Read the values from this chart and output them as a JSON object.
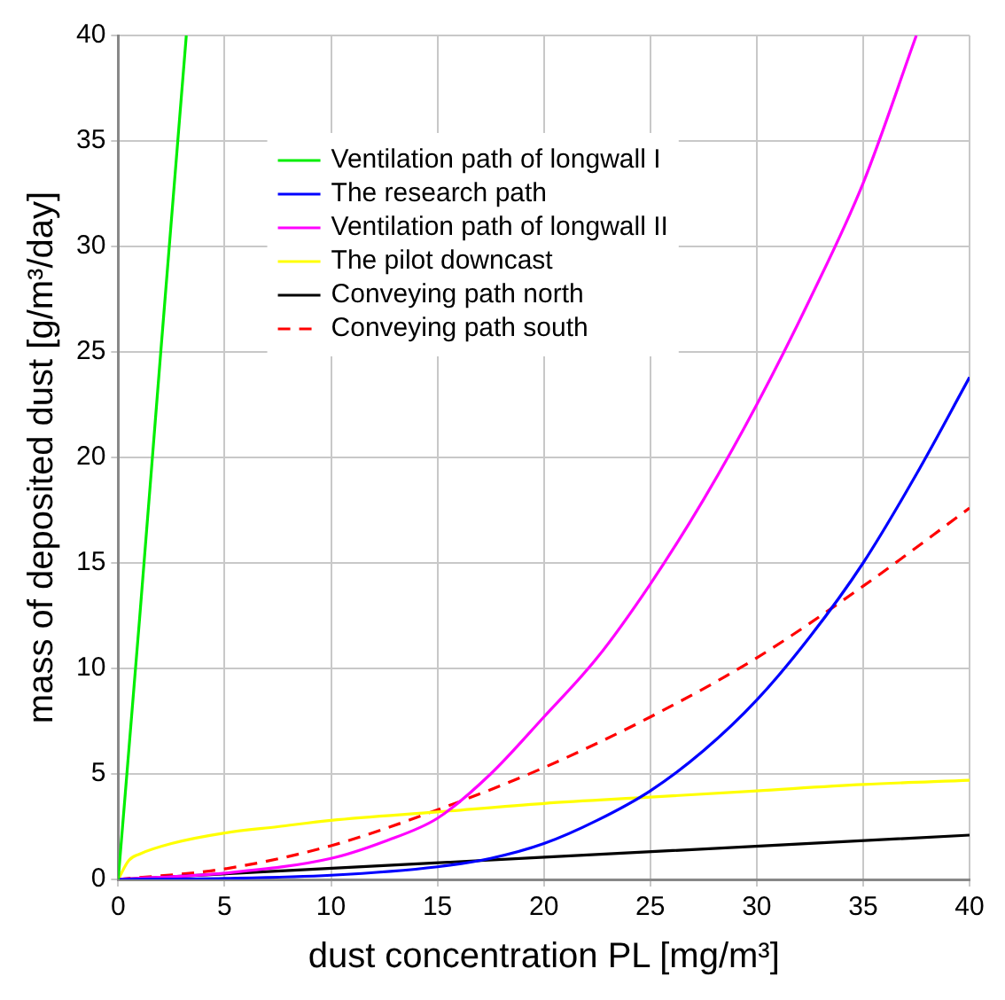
{
  "chart_data": {
    "type": "line",
    "xlabel": "dust concentration PL [mg/m³]",
    "ylabel": "mass of deposited dust [g/m³/day]",
    "xlim": [
      0,
      40
    ],
    "ylim": [
      0,
      40
    ],
    "xticks": [
      0,
      5,
      10,
      15,
      20,
      25,
      30,
      35,
      40
    ],
    "yticks": [
      0,
      5,
      10,
      15,
      20,
      25,
      30,
      35,
      40
    ],
    "grid": true,
    "legend": "top",
    "marker": "none",
    "series": [
      {
        "name": "Ventilation path of longwall I",
        "color": "#00ee00",
        "x": [
          0,
          1,
          2,
          3.2
        ],
        "values": [
          0,
          12.3,
          25,
          40
        ]
      },
      {
        "name": "The research path",
        "color": "#0000ff",
        "x": [
          0,
          5,
          10,
          15,
          17.5,
          20,
          22.5,
          25,
          27.5,
          30,
          32.5,
          35,
          37.5,
          40
        ],
        "values": [
          0,
          0.05,
          0.2,
          0.6,
          1,
          1.7,
          2.8,
          4.2,
          6.1,
          8.5,
          11.5,
          15,
          19.2,
          23.8
        ]
      },
      {
        "name": "Ventilation path of longwall II",
        "color": "#ff00ff",
        "x": [
          0,
          5,
          10,
          12.5,
          15,
          17.5,
          20,
          22.5,
          25,
          27.5,
          30,
          32.5,
          35,
          37.5
        ],
        "values": [
          0,
          0.3,
          1,
          1.8,
          2.9,
          5,
          7.7,
          10.5,
          14,
          18,
          22.5,
          27.5,
          33,
          40
        ]
      },
      {
        "name": "The pilot downcast",
        "color": "#ffff00",
        "x": [
          0,
          0.5,
          1,
          2.5,
          5,
          7.5,
          10,
          15,
          20,
          25,
          30,
          35,
          40
        ],
        "values": [
          0,
          0.9,
          1.2,
          1.7,
          2.2,
          2.5,
          2.8,
          3.2,
          3.6,
          3.9,
          4.2,
          4.5,
          4.7
        ]
      },
      {
        "name": "Conveying path north",
        "color": "#000000",
        "x": [
          0,
          40
        ],
        "values": [
          0,
          2.1
        ]
      },
      {
        "name": "Conveying path south",
        "color": "#ff0000",
        "line_style": "dashed",
        "x": [
          0,
          5,
          10,
          15,
          20,
          25,
          30,
          35,
          40
        ],
        "values": [
          0,
          0.5,
          1.6,
          3.3,
          5.3,
          7.7,
          10.5,
          13.9,
          17.6
        ]
      }
    ]
  }
}
